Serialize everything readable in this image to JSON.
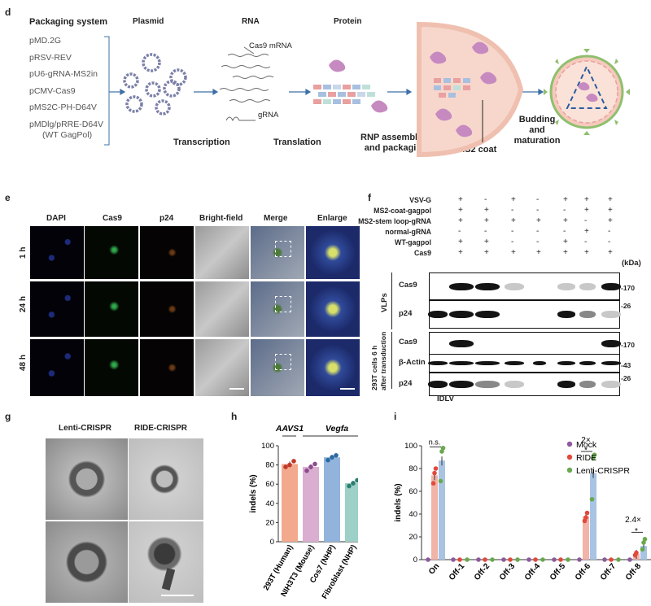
{
  "panel_d": {
    "label": "d",
    "packaging_title": "Packaging system",
    "packaging_items": [
      "pMD.2G",
      "pRSV-REV",
      "pU6-gRNA-MS2in",
      "pCMV-Cas9",
      "pMS2C-PH-D64V",
      "pMDlg/pRRE-D64V",
      "(WT GagPol)"
    ],
    "col_headers": {
      "plasmid": "Plasmid",
      "rna": "RNA",
      "protein": "Protein"
    },
    "rna_labels": {
      "cas9_mrna": "Cas9 mRNA",
      "grna": "gRNA"
    },
    "steps": {
      "transcription": "Transcription",
      "translation": "Translation",
      "rnp_line1": "RNP assembling",
      "rnp_line2": "and packaging",
      "ms2": "MS2 coat",
      "bud1": "Budding",
      "bud2": "and",
      "bud3": "maturation"
    }
  },
  "panel_e": {
    "label": "e",
    "columns": [
      "DAPI",
      "Cas9",
      "p24",
      "Bright-field",
      "Merge",
      "Enlarge"
    ],
    "rows": [
      "1 h",
      "24 h",
      "48 h"
    ]
  },
  "panel_f": {
    "label": "f",
    "conditions": [
      {
        "name": "VSV-G",
        "signs": [
          "+",
          "-",
          "+",
          "-",
          "+",
          "+",
          "+"
        ]
      },
      {
        "name": "MS2-coat-gagpol",
        "signs": [
          "+",
          "+",
          "-",
          "-",
          "-",
          "+",
          "+"
        ]
      },
      {
        "name": "MS2-stem loop-gRNA",
        "signs": [
          "+",
          "+",
          "+",
          "+",
          "+",
          "-",
          "+"
        ]
      },
      {
        "name": "normal-gRNA",
        "signs": [
          "-",
          "-",
          "-",
          "-",
          "-",
          "+",
          "-"
        ]
      },
      {
        "name": "WT-gagpol",
        "signs": [
          "+",
          "+",
          "-",
          "-",
          "+",
          "-",
          "-"
        ]
      },
      {
        "name": "Cas9",
        "signs": [
          "+",
          "+",
          "+",
          "+",
          "+",
          "+",
          "+"
        ]
      }
    ],
    "kda_label": "(kDa)",
    "group_vlps": "VLPs",
    "group_cells_line1": "293T cells 6 h",
    "group_cells_line2": "after transduction",
    "blots": [
      {
        "name": "Cas9",
        "marker": "-170"
      },
      {
        "name": "p24",
        "marker": "-26"
      },
      {
        "name": "Cas9",
        "marker": "-170"
      },
      {
        "name": "β-Actin",
        "marker": "-43"
      },
      {
        "name": "p24",
        "marker": "-26"
      }
    ],
    "bottom_label": "IDLV"
  },
  "panel_g": {
    "label": "g",
    "titles": [
      "Lenti-CRISPR",
      "RIDE-CRISPR"
    ]
  },
  "panel_h": {
    "label": "h",
    "top_labels": [
      "AAVS1",
      "Vegfa"
    ]
  },
  "panel_i": {
    "label": "i",
    "annotations": {
      "ns": "n.s.",
      "off6_fold": "2×",
      "off6_star": "*",
      "off8_fold": "2.4×",
      "off8_star": "*"
    }
  },
  "chart_data": [
    {
      "id": "h",
      "type": "bar",
      "ylabel": "indels (%)",
      "ylim": [
        0,
        100
      ],
      "yticks": [
        0,
        20,
        40,
        60,
        80,
        100
      ],
      "categories": [
        "293T (Human)",
        "NIH3T3 (Mouse)",
        "Cos7 (NHP)",
        "Fibroblast (NHP)"
      ],
      "values": [
        81,
        78,
        88,
        61
      ],
      "points": [
        [
          78,
          80,
          84
        ],
        [
          74,
          78,
          81
        ],
        [
          85,
          88,
          90
        ],
        [
          58,
          61,
          64
        ]
      ],
      "colors": [
        "#f2a98d",
        "#d9aed0",
        "#92b4dc",
        "#9dd0c6"
      ]
    },
    {
      "id": "i",
      "type": "bar",
      "ylabel": "indels (%)",
      "ylim": [
        0,
        100
      ],
      "yticks": [
        0,
        20,
        40,
        60,
        80,
        100
      ],
      "categories": [
        "On",
        "Off-1",
        "Off-2",
        "Off-3",
        "Off-4",
        "Off-5",
        "Off-6",
        "Off-7",
        "Off-8"
      ],
      "series": [
        {
          "name": "Mock",
          "color": "#8e5a9c",
          "values": [
            0,
            0,
            0,
            0,
            0,
            0,
            0,
            0,
            0
          ],
          "points": [
            [
              0
            ],
            [
              0
            ],
            [
              0
            ],
            [
              0
            ],
            [
              0
            ],
            [
              0
            ],
            [
              0
            ],
            [
              0
            ],
            [
              0
            ]
          ]
        },
        {
          "name": "RIDE",
          "color": "#e04a3c",
          "values": [
            74,
            0,
            0,
            0,
            0,
            0,
            38,
            0,
            5
          ],
          "points": [
            [
              67,
              76,
              80
            ],
            [
              0
            ],
            [
              0
            ],
            [
              0
            ],
            [
              0
            ],
            [
              0
            ],
            [
              34,
              37,
              41
            ],
            [
              0
            ],
            [
              4,
              6
            ]
          ]
        },
        {
          "name": "Lenti-CRISPR",
          "color": "#6aa84f",
          "values": [
            87,
            0,
            0,
            0,
            0,
            0,
            76,
            0,
            12
          ],
          "points": [
            [
              69,
              95,
              98
            ],
            [
              0
            ],
            [
              0
            ],
            [
              0
            ],
            [
              0
            ],
            [
              0
            ],
            [
              53,
              89,
              92
            ],
            [
              0
            ],
            [
              9,
              15,
              18
            ]
          ]
        }
      ]
    }
  ]
}
